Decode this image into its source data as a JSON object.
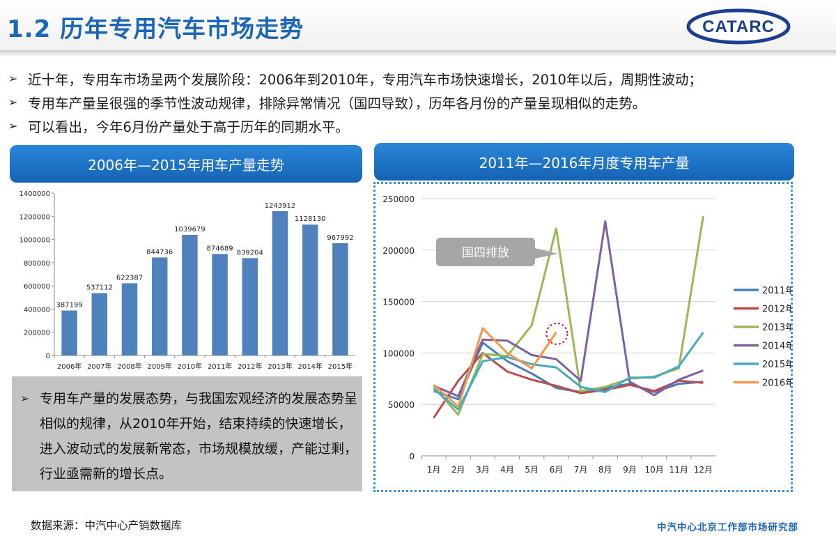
{
  "header": {
    "title": "1.2 历年专用汽车市场走势",
    "logo_text": "CATARC",
    "accent": "#1a66b8"
  },
  "bullets": [
    "近十年，专用车市场呈两个发展阶段：2006年到2010年，专用汽车市场快速增长，2010年以后，周期性波动；",
    "专用车产量呈很强的季节性波动规律，排除异常情况（国四导致），历年各月份的产量呈现相似的走势。",
    "可以看出，今年6月份产量处于高于历年的同期水平。"
  ],
  "left_panel": {
    "title": "2006年—2015年用车产量走势"
  },
  "right_panel": {
    "title": "2011年—2016年月度专用车产量",
    "callout": "国四排放"
  },
  "summary": {
    "text": "专用车产量的发展态势，与我国宏观经济的发展态势呈相似的规律，从2010年开始，结束持续的快速增长，进入波动式的发展新常态，市场规模放缓，产能过剩，行业亟需新的增长点。"
  },
  "footer": {
    "source": "数据来源：中汽中心产销数据库",
    "dept": "中汽中心北京工作部市场研究部"
  },
  "chart_data": [
    {
      "type": "bar",
      "title": "2006年—2015年用车产量走势",
      "categories": [
        "2006年",
        "2007年",
        "2008年",
        "2009年",
        "2010年",
        "2011年",
        "2012年",
        "2013年",
        "2014年",
        "2015年"
      ],
      "values": [
        387199,
        537112,
        622387,
        844736,
        1039679,
        874689,
        839204,
        1243912,
        1128130,
        967992
      ],
      "ylim": [
        0,
        1400000
      ],
      "yticks": [
        0,
        200000,
        400000,
        600000,
        800000,
        1000000,
        1200000,
        1400000
      ],
      "grid": false,
      "color": "#4f81bd"
    },
    {
      "type": "line",
      "title": "2011年—2016年月度专用车产量",
      "categories": [
        "1月",
        "2月",
        "3月",
        "4月",
        "5月",
        "6月",
        "7月",
        "8月",
        "9月",
        "10月",
        "11月",
        "12月"
      ],
      "ylim": [
        0,
        250000
      ],
      "yticks": [
        0,
        50000,
        100000,
        150000,
        200000,
        250000
      ],
      "grid": true,
      "legend": "right",
      "series": [
        {
          "name": "2011年",
          "color": "#4a7ebb",
          "values": [
            63000,
            55000,
            110000,
            92000,
            80000,
            66000,
            62000,
            66000,
            70000,
            62000,
            70000,
            72000
          ]
        },
        {
          "name": "2012年",
          "color": "#be4b48",
          "values": [
            37000,
            73000,
            100000,
            82000,
            74000,
            68000,
            61000,
            64000,
            69000,
            63000,
            73000,
            71000
          ]
        },
        {
          "name": "2013年",
          "color": "#98b954",
          "values": [
            67000,
            40000,
            99000,
            97000,
            127000,
            221000,
            63000,
            67000,
            75000,
            77000,
            85000,
            233000
          ]
        },
        {
          "name": "2014年",
          "color": "#7d60a0",
          "values": [
            68000,
            58000,
            113000,
            112000,
            98000,
            94000,
            73000,
            228000,
            72000,
            59000,
            74000,
            83000
          ]
        },
        {
          "name": "2015年",
          "color": "#46aac5",
          "values": [
            65000,
            45000,
            92000,
            96000,
            89000,
            86000,
            67000,
            62000,
            76000,
            76000,
            87000,
            120000
          ]
        },
        {
          "name": "2016年",
          "color": "#f79646",
          "values": [
            69000,
            48000,
            124000,
            100000,
            85000,
            120000,
            null,
            null,
            null,
            null,
            null,
            null
          ]
        }
      ]
    }
  ]
}
